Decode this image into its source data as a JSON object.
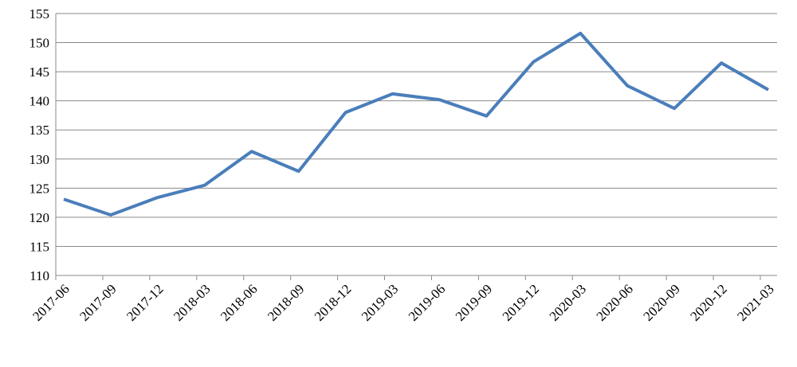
{
  "chart_data": {
    "type": "line",
    "categories": [
      "2017-06",
      "2017-09",
      "2017-12",
      "2018-03",
      "2018-06",
      "2018-09",
      "2018-12",
      "2019-03",
      "2019-06",
      "2019-09",
      "2019-12",
      "2020-03",
      "2020-06",
      "2020-09",
      "2020-12",
      "2021-03"
    ],
    "series": [
      {
        "name": "",
        "color": "#4a7ebb",
        "values": [
          123.1,
          120.4,
          123.4,
          125.5,
          131.3,
          127.9,
          138.0,
          141.2,
          140.2,
          137.4,
          146.7,
          151.6,
          142.6,
          138.7,
          146.5,
          141.9
        ]
      }
    ],
    "ylim": [
      110,
      155
    ],
    "yticks": [
      110,
      115,
      120,
      125,
      130,
      135,
      140,
      145,
      150,
      155
    ],
    "grid": true
  }
}
